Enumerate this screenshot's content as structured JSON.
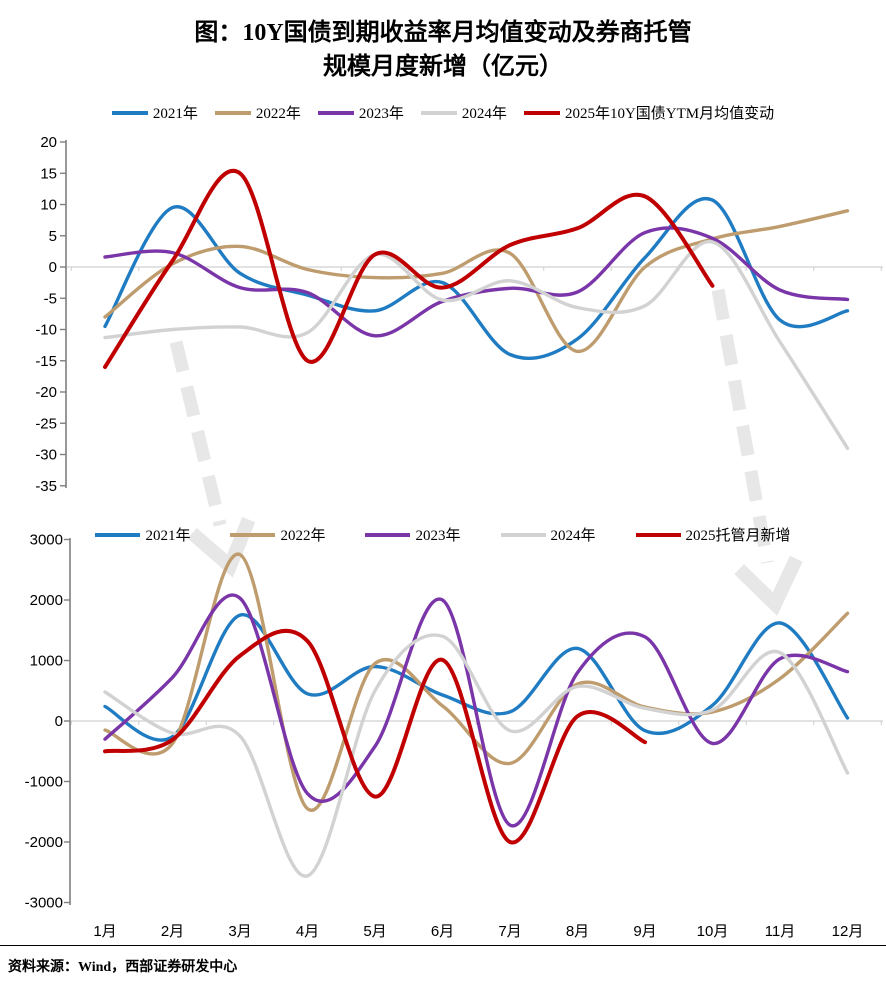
{
  "title": {
    "line1": "图：10Y国债到期收益率月均值变动及券商托管",
    "line2": "规模月度新增（亿元）"
  },
  "source_note": "资料来源：Wind，西部证券研发中心",
  "x_axis": {
    "months": [
      "1月",
      "2月",
      "3月",
      "4月",
      "5月",
      "6月",
      "7月",
      "8月",
      "9月",
      "10月",
      "11月",
      "12月"
    ]
  },
  "annotations": {
    "arrows": [
      {
        "name": "left-dashed-down-arrow",
        "direction": "down-right",
        "color": "#E7E7E7"
      },
      {
        "name": "right-dashed-down-arrow",
        "direction": "down-right",
        "color": "#E7E7E7"
      }
    ]
  },
  "chart_data": [
    {
      "id": "ytm-top-chart",
      "type": "line",
      "xlabel": "",
      "ylabel": "",
      "ylim": [
        -35,
        20
      ],
      "y_ticks": [
        20,
        15,
        10,
        5,
        0,
        -5,
        -10,
        -15,
        -20,
        -25,
        -30,
        -35
      ],
      "grid": "zero-line-only",
      "legend_position": "top",
      "series": [
        {
          "name": "2021年",
          "color": "#1F7CC2",
          "values": [
            -9.5,
            9.5,
            -1,
            -4.5,
            -7,
            -2.5,
            -14,
            -11.5,
            1.5,
            10.7,
            -8.5,
            -7
          ]
        },
        {
          "name": "2022年",
          "color": "#BE9C6E",
          "values": [
            -8,
            0.5,
            3.3,
            -0.4,
            -1.7,
            -1,
            2.2,
            -13.5,
            0,
            4.5,
            6.5,
            9
          ]
        },
        {
          "name": "2023年",
          "color": "#7A35A8",
          "values": [
            1.6,
            2.3,
            -3.3,
            -4.1,
            -11,
            -5.5,
            -3.4,
            -4,
            5.5,
            4.6,
            -3.7,
            -5.2
          ]
        },
        {
          "name": "2024年",
          "color": "#D2D2D2",
          "values": [
            -11.3,
            -10,
            -9.6,
            -10.5,
            2,
            -5.3,
            -2.2,
            -6.5,
            -6.2,
            4,
            -12,
            -29
          ]
        },
        {
          "name": "2025年10Y国债YTM月均值变动",
          "color": "#C00000",
          "values": [
            -16,
            1,
            15,
            -15,
            2,
            -3.3,
            3.5,
            6.2,
            11.3,
            -3,
            null,
            null
          ]
        }
      ]
    },
    {
      "id": "custody-bottom-chart",
      "type": "line",
      "xlabel": "",
      "ylabel": "",
      "ylim": [
        -3000,
        3000
      ],
      "y_ticks": [
        3000,
        2000,
        1000,
        0,
        -1000,
        -2000,
        -3000
      ],
      "grid": "zero-line-only",
      "legend_position": "top",
      "series": [
        {
          "name": "2021年",
          "color": "#1F7CC2",
          "values": [
            240,
            -260,
            1750,
            450,
            900,
            430,
            150,
            1200,
            -160,
            260,
            1620,
            50
          ]
        },
        {
          "name": "2022年",
          "color": "#BE9C6E",
          "values": [
            -150,
            -370,
            2750,
            -1450,
            950,
            250,
            -700,
            610,
            230,
            150,
            700,
            1780
          ]
        },
        {
          "name": "2023年",
          "color": "#7A35A8",
          "values": [
            -300,
            720,
            2030,
            -1200,
            -420,
            2000,
            -1720,
            800,
            1390,
            -370,
            1030,
            815
          ]
        },
        {
          "name": "2024年",
          "color": "#D2D2D2",
          "values": [
            480,
            -200,
            -250,
            -2560,
            500,
            1400,
            -160,
            570,
            210,
            180,
            1130,
            -860
          ]
        },
        {
          "name": "2025托管月新增",
          "color": "#C00000",
          "values": [
            -500,
            -310,
            1080,
            1320,
            -1250,
            1010,
            -2000,
            80,
            -350,
            null,
            null,
            null
          ]
        }
      ]
    }
  ]
}
